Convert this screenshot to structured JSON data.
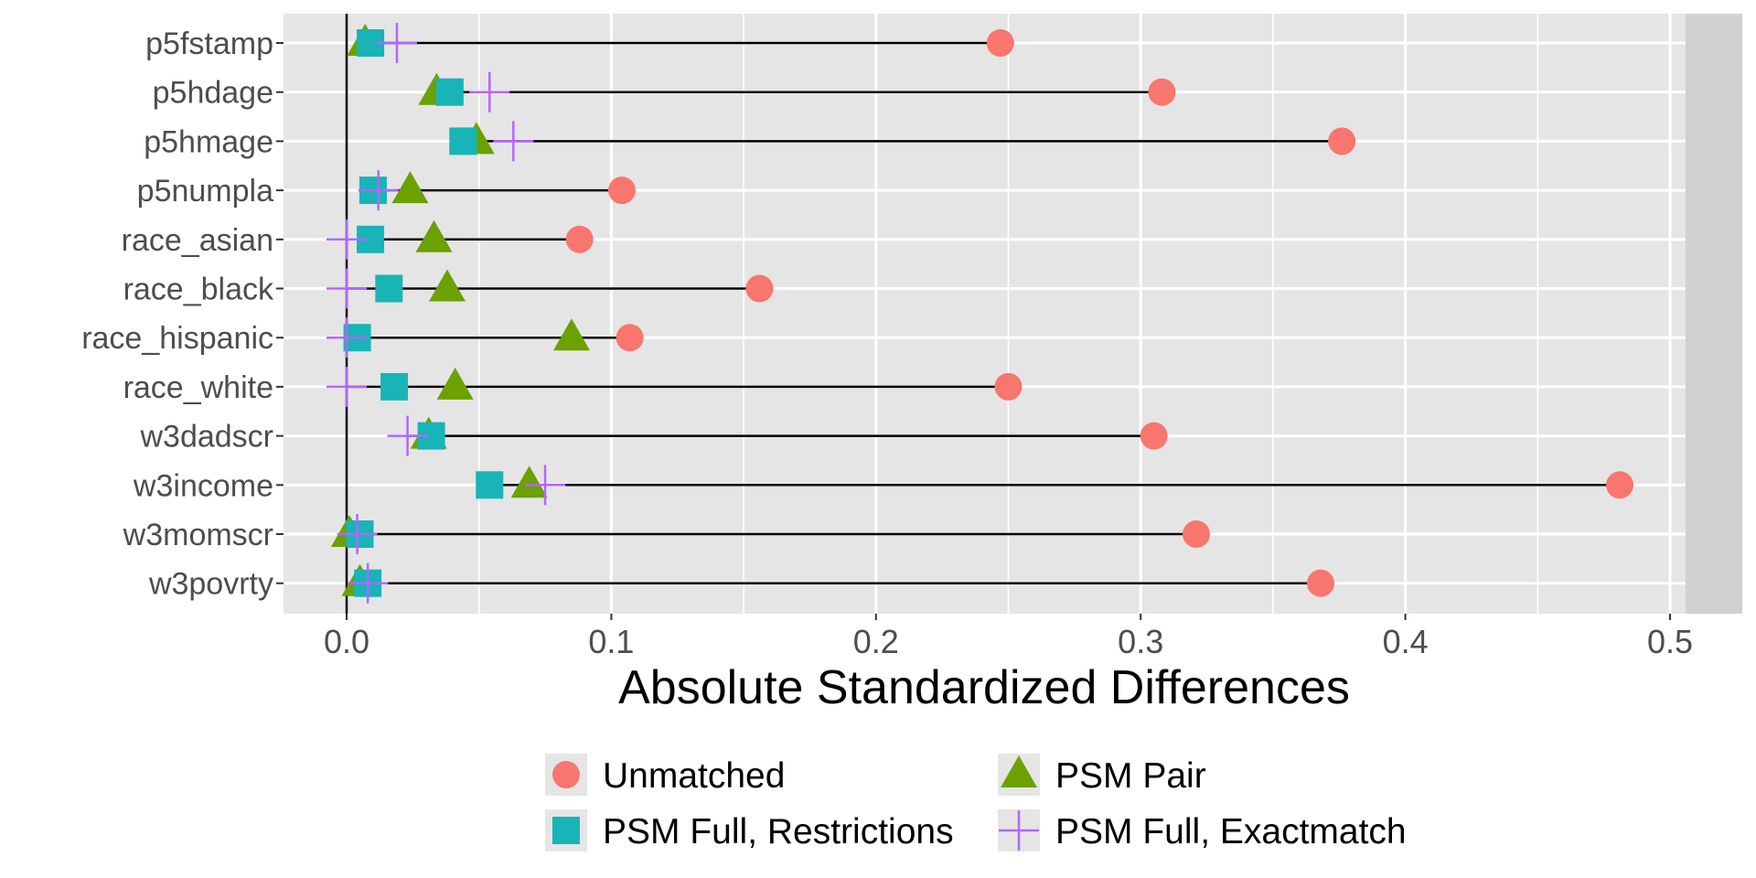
{
  "chart_data": {
    "type": "scatter",
    "subtype": "dot-plot (love plot) with segments",
    "title": "",
    "xlabel": "Absolute Standardized Differences",
    "ylabel": "",
    "xlim": [
      -0.024,
      0.507
    ],
    "x_ticks": [
      0.0,
      0.1,
      0.2,
      0.3,
      0.4,
      0.5
    ],
    "x_tick_labels": [
      "0.0",
      "0.1",
      "0.2",
      "0.3",
      "0.4",
      "0.5"
    ],
    "x_minor_ticks": [
      0.05,
      0.15,
      0.25,
      0.35,
      0.45
    ],
    "reference_line_x": 0.0,
    "grid": true,
    "legend_position": "bottom",
    "categories": [
      "p5fstamp",
      "p5hdage",
      "p5hmage",
      "p5numpla",
      "race_asian",
      "race_black",
      "race_hispanic",
      "race_white",
      "w3dadscr",
      "w3income",
      "w3momscr",
      "w3povrty"
    ],
    "series": [
      {
        "name": "Unmatched",
        "marker": "circle",
        "color": "#F8766D",
        "values": [
          0.247,
          0.308,
          0.376,
          0.104,
          0.088,
          0.156,
          0.107,
          0.25,
          0.305,
          0.481,
          0.321,
          0.368
        ]
      },
      {
        "name": "PSM Pair",
        "marker": "triangle",
        "color": "#7CAE00",
        "values": [
          0.007,
          0.034,
          0.049,
          0.024,
          0.033,
          0.038,
          0.085,
          0.041,
          0.031,
          0.069,
          0.001,
          0.005
        ]
      },
      {
        "name": "PSM Full, Restrictions",
        "marker": "square",
        "color": "#00BFC4",
        "values": [
          0.009,
          0.039,
          0.044,
          0.01,
          0.009,
          0.016,
          0.004,
          0.018,
          0.032,
          0.054,
          0.005,
          0.008
        ]
      },
      {
        "name": "PSM Full, Exactmatch",
        "marker": "cross",
        "color": "#C77CFF",
        "values": [
          0.019,
          0.054,
          0.063,
          0.012,
          0.0,
          0.0,
          0.0,
          0.0,
          0.023,
          0.075,
          0.004,
          0.008
        ]
      }
    ],
    "legend": [
      {
        "label": "Unmatched",
        "marker": "circle"
      },
      {
        "label": "PSM Pair",
        "marker": "triangle"
      },
      {
        "label": "PSM Full, Restrictions",
        "marker": "square"
      },
      {
        "label": "PSM Full, Exactmatch",
        "marker": "cross"
      }
    ]
  },
  "colors": {
    "panel_bg": "#E5E5E5",
    "strip_bg": "#D0D0D0",
    "grid": "#FFFFFF",
    "segment": "#000000",
    "axis_text": "#4D4D4D",
    "unmatched": "#F8766D",
    "psm_pair": "#6BA100",
    "psm_full_restrictions": "#18B4B7",
    "psm_full_exactmatch": "#B266FF"
  }
}
